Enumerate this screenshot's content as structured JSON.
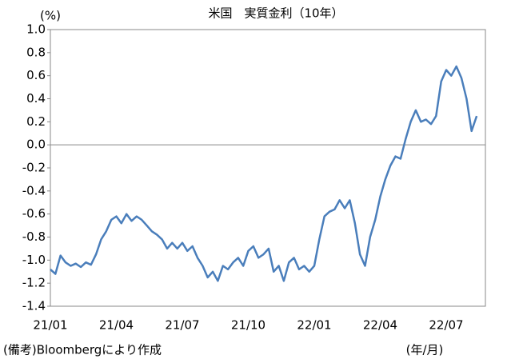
{
  "chart_data": {
    "type": "line",
    "title": "米国　実質金利（10年）",
    "y_unit": "(%)",
    "x_unit": "(年/月)",
    "note": "(備考)Bloombergにより作成",
    "categories": [
      "21/01",
      null,
      null,
      null,
      null,
      null,
      null,
      null,
      null,
      null,
      null,
      null,
      null,
      "21/04",
      null,
      null,
      null,
      null,
      null,
      null,
      null,
      null,
      null,
      null,
      null,
      null,
      "21/07",
      null,
      null,
      null,
      null,
      null,
      null,
      null,
      null,
      null,
      null,
      null,
      null,
      "21/10",
      null,
      null,
      null,
      null,
      null,
      null,
      null,
      null,
      null,
      null,
      null,
      null,
      "22/01",
      null,
      null,
      null,
      null,
      null,
      null,
      null,
      null,
      null,
      null,
      null,
      null,
      "22/04",
      null,
      null,
      null,
      null,
      null,
      null,
      null,
      null,
      null,
      null,
      null,
      null,
      "22/07",
      null,
      null,
      null,
      null,
      null,
      null
    ],
    "series": [
      {
        "name": "実質金利",
        "color": "#4a7ebb",
        "values": [
          -1.08,
          -1.12,
          -0.96,
          -1.02,
          -1.05,
          -1.03,
          -1.06,
          -1.02,
          -1.04,
          -0.95,
          -0.82,
          -0.75,
          -0.65,
          -0.62,
          -0.68,
          -0.6,
          -0.66,
          -0.62,
          -0.65,
          -0.7,
          -0.75,
          -0.78,
          -0.82,
          -0.9,
          -0.85,
          -0.9,
          -0.85,
          -0.92,
          -0.88,
          -0.98,
          -1.05,
          -1.15,
          -1.1,
          -1.18,
          -1.05,
          -1.08,
          -1.02,
          -0.98,
          -1.05,
          -0.92,
          -0.88,
          -0.98,
          -0.95,
          -0.9,
          -1.1,
          -1.05,
          -1.18,
          -1.02,
          -0.98,
          -1.08,
          -1.05,
          -1.1,
          -1.05,
          -0.82,
          -0.62,
          -0.58,
          -0.56,
          -0.48,
          -0.55,
          -0.48,
          -0.68,
          -0.95,
          -1.05,
          -0.8,
          -0.65,
          -0.45,
          -0.3,
          -0.18,
          -0.1,
          -0.12,
          0.05,
          0.2,
          0.3,
          0.2,
          0.22,
          0.18,
          0.25,
          0.55,
          0.65,
          0.6,
          0.68,
          0.58,
          0.4,
          0.12,
          0.25
        ]
      }
    ],
    "ylim": [
      -1.4,
      1.0
    ],
    "yticks": [
      {
        "value": 1.0,
        "label": "1.0"
      },
      0.8,
      0.6,
      0.4,
      0.2,
      {
        "value": 0,
        "label": "0.0"
      },
      -0.2,
      -0.4,
      -0.6,
      -0.8,
      {
        "value": -1.0,
        "label": "-1.0"
      },
      -1.2,
      -1.4
    ],
    "zero_line": true,
    "grid": false
  }
}
